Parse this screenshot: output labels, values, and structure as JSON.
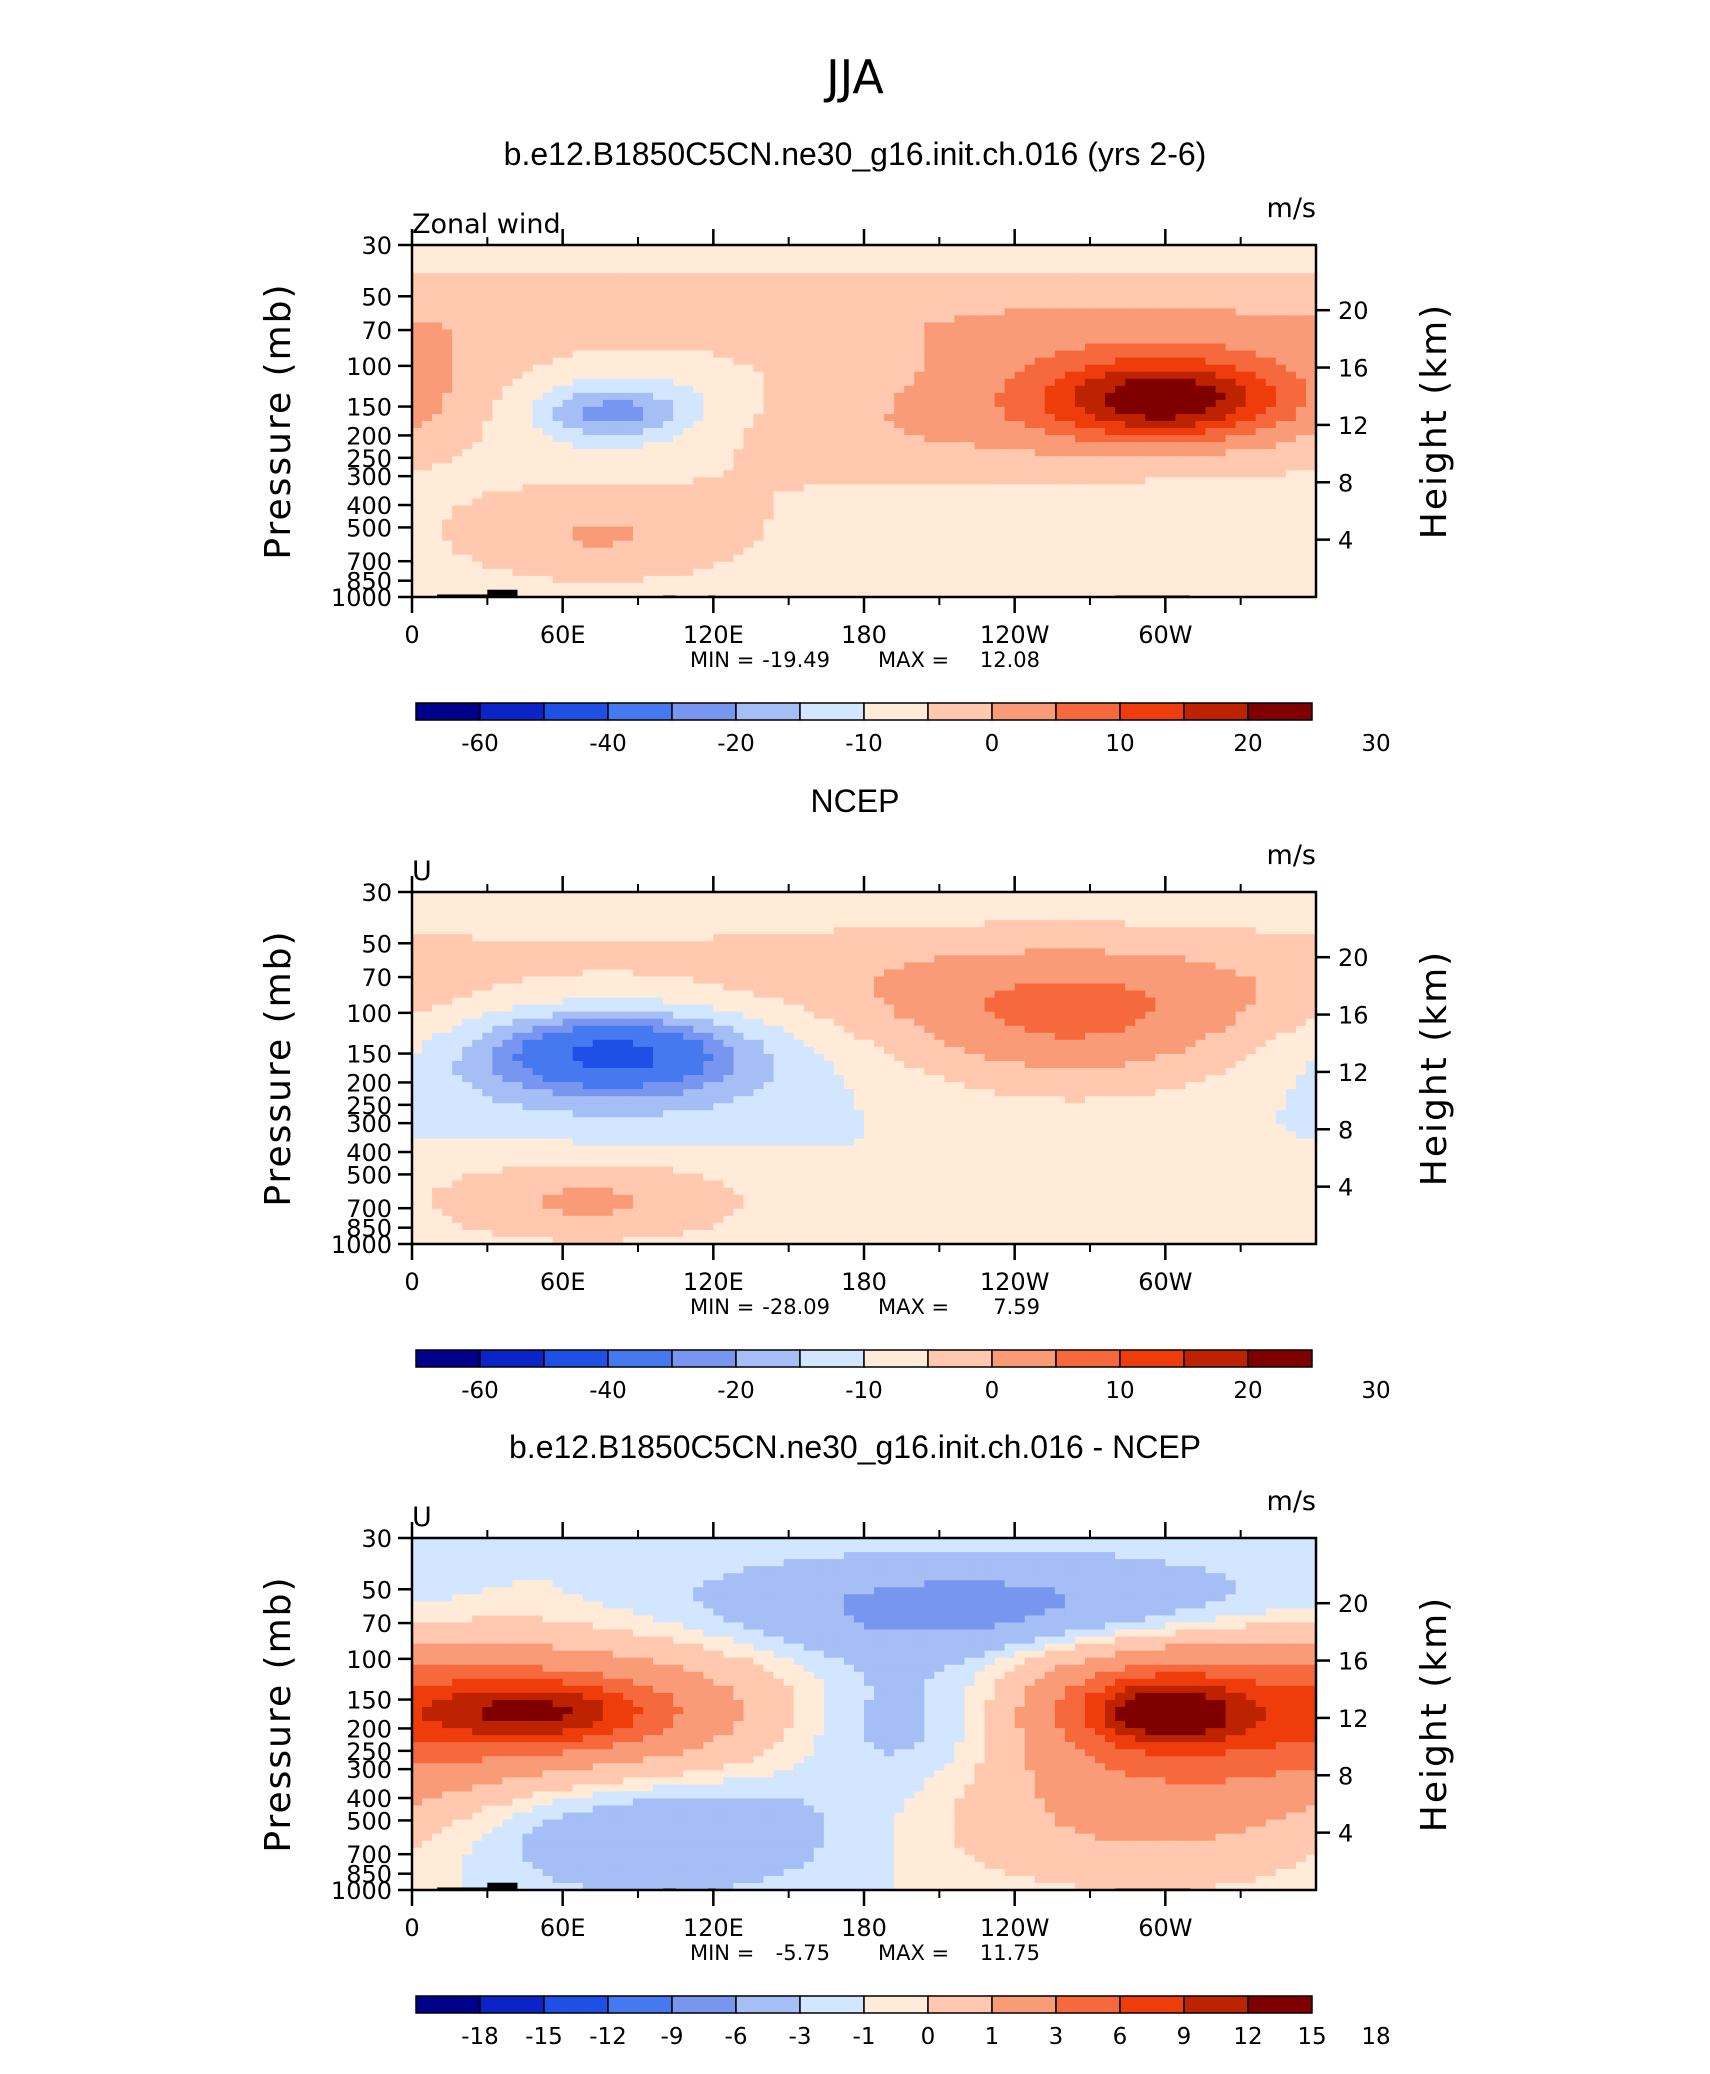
{
  "figure": {
    "season": "JJA"
  },
  "scales": {
    "model": {
      "colors": [
        "#00008b",
        "#0a24c8",
        "#1e50e6",
        "#4678f0",
        "#7896f0",
        "#a5bef5",
        "#d2e6ff",
        "#ffebd7",
        "#ffc8af",
        "#fa9b78",
        "#f5693c",
        "#ee3c0a",
        "#be2300",
        "#800000"
      ],
      "labels": [
        "-60",
        "-40",
        "-20",
        "-10",
        "0",
        "10",
        "20",
        "30"
      ],
      "label_boundaries": [
        1,
        3,
        5,
        7,
        9,
        11,
        13,
        15
      ]
    },
    "diff": {
      "colors": [
        "#00008b",
        "#0a24c8",
        "#1e50e6",
        "#4678f0",
        "#7896f0",
        "#a5bef5",
        "#d2e6ff",
        "#ffebd7",
        "#ffc8af",
        "#fa9b78",
        "#f5693c",
        "#ee3c0a",
        "#be2300",
        "#800000"
      ],
      "labels": [
        "-18",
        "-15",
        "-12",
        "-9",
        "-6",
        "-3",
        "-1",
        "0",
        "1",
        "3",
        "6",
        "9",
        "12",
        "15",
        "18"
      ],
      "label_boundaries": [
        1,
        2,
        3,
        4,
        5,
        6,
        7,
        8,
        9,
        10,
        11,
        12,
        13,
        14,
        15
      ]
    }
  },
  "axes": {
    "x_ticks": [
      "0",
      "60E",
      "120E",
      "180",
      "120W",
      "60W"
    ],
    "x_tick_lons": [
      0,
      60,
      120,
      180,
      240,
      300
    ],
    "x_minor_lons": [
      30,
      90,
      150,
      210,
      270,
      330
    ],
    "p_ticks": [
      "30",
      "50",
      "70",
      "100",
      "150",
      "200",
      "250",
      "300",
      "400",
      "500",
      "700",
      "850",
      "1000"
    ],
    "p_values": [
      30,
      50,
      70,
      100,
      150,
      200,
      250,
      300,
      400,
      500,
      700,
      850,
      1000
    ],
    "h_ticks": [
      "20",
      "16",
      "12",
      "8",
      "4"
    ],
    "h_values": [
      20,
      16,
      12,
      8,
      4
    ],
    "y_label": "Pressure (mb)",
    "y2_label": "Height (km)",
    "units": "m/s"
  },
  "panels": [
    {
      "title": "b.e12.B1850C5CN.ne30_g16.init.ch.016 (yrs 2-6)",
      "corner_label": "Zonal wind",
      "units": "m/s",
      "stats": {
        "min_label": "MIN =",
        "min": "-19.49",
        "max_label": "MAX =",
        "max": "12.08"
      },
      "scale": "model",
      "topography": true
    },
    {
      "title": "NCEP",
      "corner_label": "U",
      "units": "m/s",
      "stats": {
        "min_label": "MIN =",
        "min": "-28.09",
        "max_label": "MAX =",
        "max": "7.59"
      },
      "scale": "model",
      "topography": false
    },
    {
      "title": "b.e12.B1850C5CN.ne30_g16.init.ch.016 - NCEP",
      "corner_label": "U",
      "units": "m/s",
      "stats": {
        "min_label": "MIN =",
        "min": "-5.75",
        "max_label": "MAX =",
        "max": "11.75"
      },
      "scale": "diff",
      "topography": true
    }
  ],
  "chart_data": [
    {
      "type": "heatmap",
      "title": "b.e12.B1850C5CN.ne30_g16.init.ch.016 (yrs 2-6)",
      "variable": "Zonal wind",
      "units": "m/s",
      "x": "longitude (0 to 360)",
      "y": "pressure (mb, 30 to 1000)",
      "min": -19.49,
      "max": 12.08,
      "background_level": -5,
      "features": [
        {
          "lon": 0,
          "p": 60,
          "value": -5,
          "lon_w": 360,
          "p_w": 22
        },
        {
          "lon": 150,
          "p": 60,
          "value": 3,
          "lon_w": 360,
          "p_w": 30
        },
        {
          "lon": 80,
          "p": 160,
          "value": -12,
          "lon_w": 40,
          "p_w": 90
        },
        {
          "lon": 80,
          "p": 160,
          "value": -17,
          "lon_w": 20,
          "p_w": 30
        },
        {
          "lon": 300,
          "p": 140,
          "value": 10,
          "lon_w": 70,
          "p_w": 90
        },
        {
          "lon": 300,
          "p": 140,
          "value": 14,
          "lon_w": 30,
          "p_w": 40
        },
        {
          "lon": 75,
          "p": 550,
          "value": 5,
          "lon_w": 50,
          "p_w": 250
        },
        {
          "lon": 150,
          "p": 200,
          "value": 2,
          "lon_w": 80,
          "p_w": 120
        }
      ]
    },
    {
      "type": "heatmap",
      "title": "NCEP",
      "variable": "U",
      "units": "m/s",
      "x": "longitude (0 to 360)",
      "y": "pressure (mb, 30 to 1000)",
      "min": -28.09,
      "max": 7.59,
      "background_level": -5,
      "features": [
        {
          "lon": 0,
          "p": 45,
          "value": -5,
          "lon_w": 360,
          "p_w": 15
        },
        {
          "lon": 150,
          "p": 70,
          "value": 3,
          "lon_w": 360,
          "p_w": 40
        },
        {
          "lon": 80,
          "p": 150,
          "value": -15,
          "lon_w": 60,
          "p_w": 100
        },
        {
          "lon": 80,
          "p": 150,
          "value": -26,
          "lon_w": 30,
          "p_w": 40
        },
        {
          "lon": 265,
          "p": 120,
          "value": 7,
          "lon_w": 60,
          "p_w": 80
        },
        {
          "lon": 70,
          "p": 650,
          "value": 6,
          "lon_w": 50,
          "p_w": 250
        }
      ]
    },
    {
      "type": "heatmap",
      "title": "b.e12.B1850C5CN.ne30_g16.init.ch.016 - NCEP",
      "variable": "U",
      "units": "m/s",
      "x": "longitude (0 to 360)",
      "y": "pressure (mb, 30 to 1000)",
      "min": -5.75,
      "max": 11.75,
      "background_level": 0,
      "features": [
        {
          "lon": 50,
          "p": 170,
          "value": 6,
          "lon_w": 80,
          "p_w": 110
        },
        {
          "lon": 50,
          "p": 170,
          "value": 9,
          "lon_w": 30,
          "p_w": 40
        },
        {
          "lon": 300,
          "p": 170,
          "value": 7,
          "lon_w": 60,
          "p_w": 120
        },
        {
          "lon": 300,
          "p": 170,
          "value": 11,
          "lon_w": 20,
          "p_w": 40
        },
        {
          "lon": 200,
          "p": 180,
          "value": -4,
          "lon_w": 40,
          "p_w": 120
        },
        {
          "lon": 230,
          "p": 60,
          "value": -4,
          "lon_w": 80,
          "p_w": 25
        },
        {
          "lon": 90,
          "p": 550,
          "value": -3,
          "lon_w": 60,
          "p_w": 300
        },
        {
          "lon": 300,
          "p": 500,
          "value": 3,
          "lon_w": 70,
          "p_w": 300
        }
      ]
    }
  ]
}
